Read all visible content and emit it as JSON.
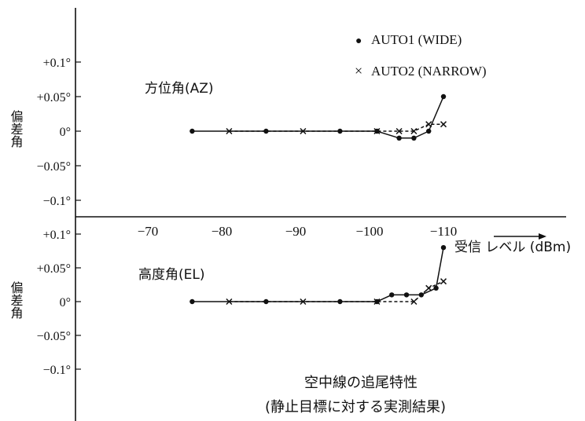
{
  "chart_data": [
    {
      "type": "line",
      "panel_label": "方位角(AZ)",
      "ylabel": "偏差角",
      "yticks": [
        "+0.1°",
        "+0.05°",
        "0°",
        "−0.05°",
        "−0.1°"
      ],
      "ylim": [
        -0.13,
        0.17
      ],
      "series": [
        {
          "name": "AUTO1 (WIDE)",
          "marker": "dot",
          "line": "solid",
          "x": [
            -76,
            -86,
            -96,
            -101,
            -104,
            -106,
            -108,
            -110
          ],
          "y": [
            0,
            0,
            0,
            0,
            -0.01,
            -0.01,
            0,
            0.05
          ]
        },
        {
          "name": "AUTO2 (NARROW)",
          "marker": "x",
          "line": "dashed",
          "x": [
            -81,
            -91,
            -101,
            -104,
            -106,
            -108,
            -110
          ],
          "y": [
            0,
            0,
            0,
            0,
            0,
            0.01,
            0.01
          ]
        }
      ]
    },
    {
      "type": "line",
      "panel_label": "高度角(EL)",
      "ylabel": "偏差角",
      "yticks": [
        "+0.1°",
        "+0.05°",
        "0°",
        "−0.05°",
        "−0.1°"
      ],
      "ylim": [
        -0.17,
        0.11
      ],
      "series": [
        {
          "name": "AUTO1 (WIDE)",
          "marker": "dot",
          "line": "solid",
          "x": [
            -76,
            -86,
            -96,
            -101,
            -103,
            -105,
            -107,
            -109,
            -110
          ],
          "y": [
            0,
            0,
            0,
            0,
            0.01,
            0.01,
            0.01,
            0.02,
            0.08
          ]
        },
        {
          "name": "AUTO2 (NARROW)",
          "marker": "x",
          "line": "dashed",
          "x": [
            -81,
            -91,
            -101,
            -106,
            -108,
            -110
          ],
          "y": [
            0,
            0,
            0,
            0,
            0.02,
            0.03
          ]
        }
      ]
    }
  ],
  "xaxis": {
    "ticks": [
      -70,
      -80,
      -90,
      -100,
      -110
    ],
    "tick_labels": [
      "−70",
      "−80",
      "−90",
      "−100",
      "−110"
    ],
    "label": "受信 レベル (dBm)"
  },
  "legend": {
    "placement": "top-right",
    "items": [
      {
        "marker": "●",
        "label": "AUTO1 (WIDE)"
      },
      {
        "marker": "×",
        "label": "AUTO2 (NARROW)"
      }
    ]
  },
  "caption": {
    "line1": "空中線の追尾特性",
    "line2": "(静止目標に対する実測結果)"
  },
  "colors": {
    "ink": "#111111",
    "background": "#ffffff"
  }
}
